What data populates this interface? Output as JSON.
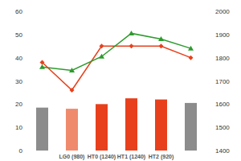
{
  "chart_data": {
    "type": "bar",
    "categories": [
      null,
      "LG0 (980)",
      "HT0 (1240)",
      "HT1 (1240)",
      "HT2 (920)",
      null
    ],
    "series": [
      {
        "type": "bar",
        "axis": "y",
        "colors": [
          "#8c8c8c",
          "#f08a6c",
          "#e8401c",
          "#e8401c",
          "#e8401c",
          "#8c8c8c"
        ],
        "values": [
          18.5,
          18,
          20,
          22.5,
          22,
          20.5
        ]
      },
      {
        "type": "line",
        "axis": "y2",
        "color": "#e8401c",
        "marker": "diamond",
        "values": [
          1780,
          1660,
          1850,
          1850,
          1850,
          1800
        ]
      },
      {
        "type": "line",
        "axis": "y2",
        "color": "#2e9b2e",
        "marker": "triangle",
        "values": [
          1760,
          1745,
          1805,
          1905,
          1880,
          1840
        ]
      }
    ],
    "ylim": [
      0,
      60
    ],
    "yticks": [
      0,
      10,
      20,
      30,
      40,
      50,
      60
    ],
    "y2lim": [
      1400,
      2000
    ],
    "y2ticks": [
      1400,
      1500,
      1600,
      1700,
      1800,
      1900,
      2000
    ],
    "grid": false
  }
}
